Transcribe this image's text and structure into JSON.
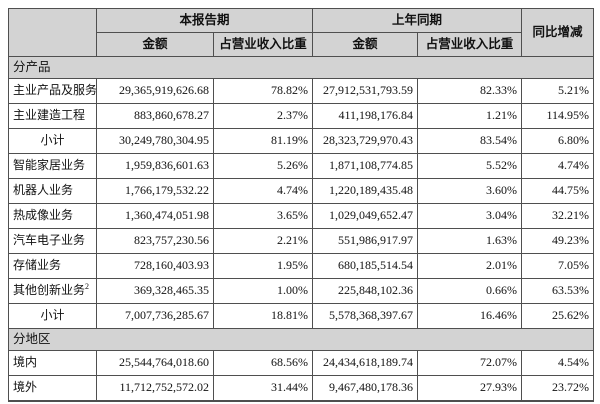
{
  "colors": {
    "header_bg": "#d3d3d3",
    "section_bg": "#d3d3d3",
    "border": "#4f4f4f",
    "text": "#111111",
    "page_bg": "#ffffff"
  },
  "table": {
    "header": {
      "current_period": "本报告期",
      "prior_period": "上年同期",
      "yoy": "同比增减",
      "amount": "金额",
      "ratio": "占营业收入比重"
    },
    "sections": [
      {
        "title": "分产品",
        "rows": [
          {
            "label": "主业产品及服务",
            "sup": "1",
            "align": "left",
            "cur_amount": "29,365,919,626.68",
            "cur_ratio": "78.82%",
            "prior_amount": "27,912,531,793.59",
            "prior_ratio": "82.33%",
            "yoy": "5.21%"
          },
          {
            "label": "主业建造工程",
            "sup": "",
            "align": "left",
            "cur_amount": "883,860,678.27",
            "cur_ratio": "2.37%",
            "prior_amount": "411,198,176.84",
            "prior_ratio": "1.21%",
            "yoy": "114.95%"
          },
          {
            "label": "小计",
            "sup": "",
            "align": "center",
            "cur_amount": "30,249,780,304.95",
            "cur_ratio": "81.19%",
            "prior_amount": "28,323,729,970.43",
            "prior_ratio": "83.54%",
            "yoy": "6.80%"
          },
          {
            "label": "智能家居业务",
            "sup": "",
            "align": "left",
            "cur_amount": "1,959,836,601.63",
            "cur_ratio": "5.26%",
            "prior_amount": "1,871,108,774.85",
            "prior_ratio": "5.52%",
            "yoy": "4.74%"
          },
          {
            "label": "机器人业务",
            "sup": "",
            "align": "left",
            "cur_amount": "1,766,179,532.22",
            "cur_ratio": "4.74%",
            "prior_amount": "1,220,189,435.48",
            "prior_ratio": "3.60%",
            "yoy": "44.75%"
          },
          {
            "label": "热成像业务",
            "sup": "",
            "align": "left",
            "cur_amount": "1,360,474,051.98",
            "cur_ratio": "3.65%",
            "prior_amount": "1,029,049,652.47",
            "prior_ratio": "3.04%",
            "yoy": "32.21%"
          },
          {
            "label": "汽车电子业务",
            "sup": "",
            "align": "left",
            "cur_amount": "823,757,230.56",
            "cur_ratio": "2.21%",
            "prior_amount": "551,986,917.97",
            "prior_ratio": "1.63%",
            "yoy": "49.23%"
          },
          {
            "label": "存储业务",
            "sup": "",
            "align": "left",
            "cur_amount": "728,160,403.93",
            "cur_ratio": "1.95%",
            "prior_amount": "680,185,514.54",
            "prior_ratio": "2.01%",
            "yoy": "7.05%"
          },
          {
            "label": "其他创新业务",
            "sup": "2",
            "align": "left",
            "cur_amount": "369,328,465.35",
            "cur_ratio": "1.00%",
            "prior_amount": "225,848,102.36",
            "prior_ratio": "0.66%",
            "yoy": "63.53%"
          },
          {
            "label": "小计",
            "sup": "",
            "align": "center",
            "cur_amount": "7,007,736,285.67",
            "cur_ratio": "18.81%",
            "prior_amount": "5,578,368,397.67",
            "prior_ratio": "16.46%",
            "yoy": "25.62%"
          }
        ]
      },
      {
        "title": "分地区",
        "rows": [
          {
            "label": "境内",
            "sup": "",
            "align": "left",
            "cur_amount": "25,544,764,018.60",
            "cur_ratio": "68.56%",
            "prior_amount": "24,434,618,189.74",
            "prior_ratio": "72.07%",
            "yoy": "4.54%"
          },
          {
            "label": "境外",
            "sup": "",
            "align": "left",
            "cur_amount": "11,712,752,572.02",
            "cur_ratio": "31.44%",
            "prior_amount": "9,467,480,178.36",
            "prior_ratio": "27.93%",
            "yoy": "23.72%"
          }
        ]
      }
    ]
  }
}
